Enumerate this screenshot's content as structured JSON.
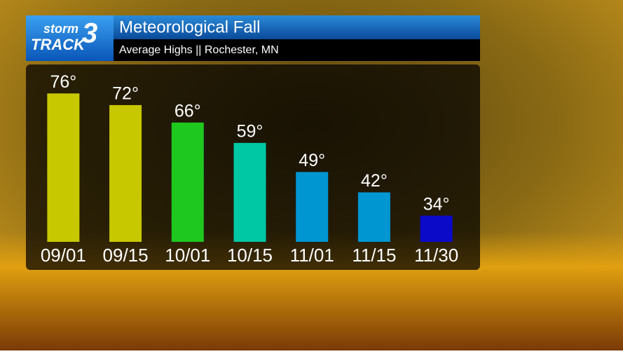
{
  "logo": {
    "line1": "storm",
    "line2": "TRACK",
    "number": "3"
  },
  "chart_data": {
    "type": "bar",
    "title": "Meteorological Fall",
    "subtitle": "Average Highs || Rochester, MN",
    "categories": [
      "09/01",
      "09/15",
      "10/01",
      "10/15",
      "11/01",
      "11/15",
      "11/30"
    ],
    "values": [
      76,
      72,
      66,
      59,
      49,
      42,
      34
    ],
    "value_labels": [
      "76°",
      "72°",
      "66°",
      "59°",
      "49°",
      "42°",
      "34°"
    ],
    "colors": [
      "#c8c800",
      "#c8c800",
      "#1ec81e",
      "#00c8a5",
      "#0096d2",
      "#0096d2",
      "#0a0ac8"
    ],
    "ylim": [
      25,
      78
    ]
  }
}
